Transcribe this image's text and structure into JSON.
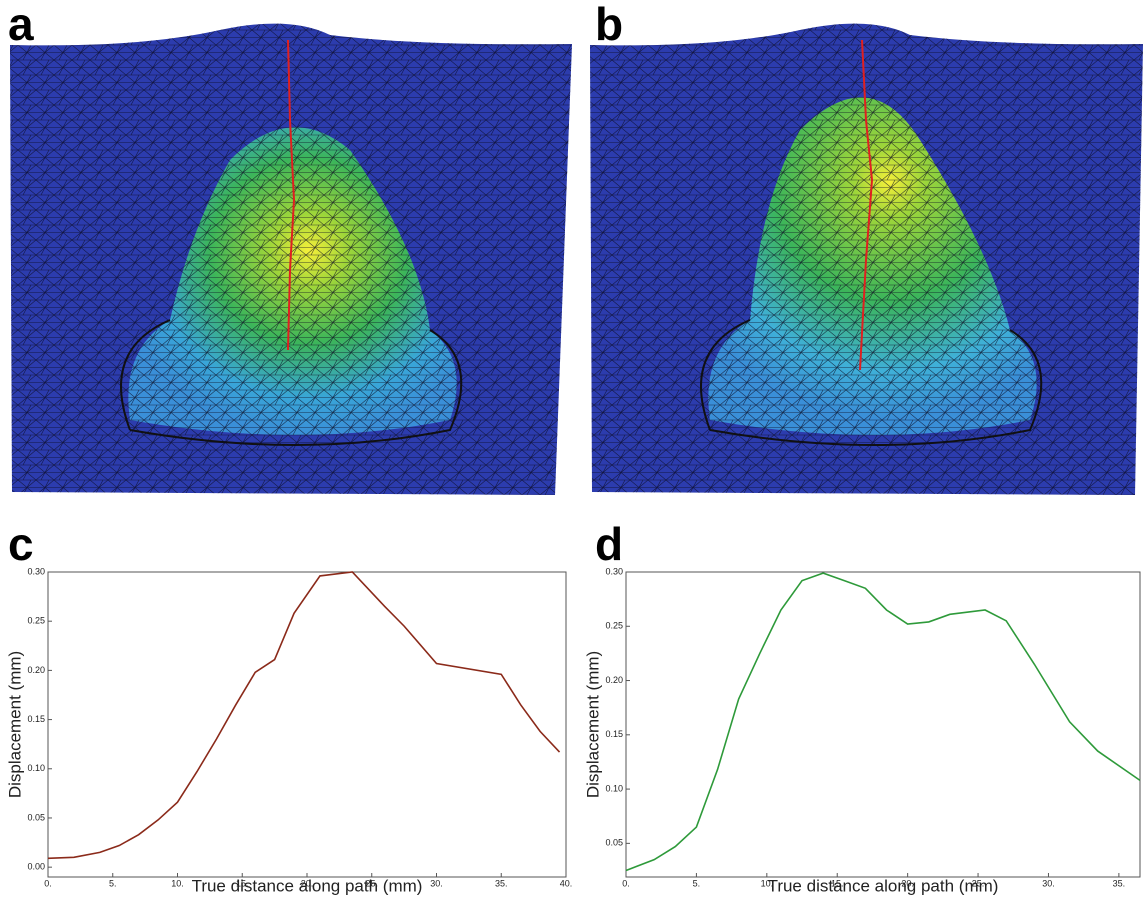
{
  "panel_labels": [
    "a",
    "b",
    "c",
    "d"
  ],
  "chart_data": [
    {
      "type": "line",
      "x_label": "True distance along path (mm)",
      "y_label": "Displacement (mm)",
      "color": "#8b2a1a",
      "x": [
        0,
        2,
        4,
        5.5,
        7,
        8.5,
        10,
        11.5,
        13,
        14.5,
        16,
        17.5,
        19,
        21,
        23.5,
        26,
        27.5,
        30,
        35,
        36.5,
        38,
        39.5
      ],
      "values": [
        0.009,
        0.01,
        0.015,
        0.022,
        0.033,
        0.048,
        0.066,
        0.097,
        0.13,
        0.165,
        0.198,
        0.211,
        0.258,
        0.296,
        0.3,
        0.265,
        0.245,
        0.207,
        0.196,
        0.165,
        0.138,
        0.117
      ],
      "xlim": [
        0,
        40
      ],
      "ylim": [
        -0.01,
        0.3
      ],
      "xticks": [
        {
          "value": 0,
          "label": "0."
        },
        {
          "value": 5,
          "label": "5."
        },
        {
          "value": 10,
          "label": "10."
        },
        {
          "value": 15,
          "label": "15."
        },
        {
          "value": 20,
          "label": "20."
        },
        {
          "value": 25,
          "label": "25."
        },
        {
          "value": 30,
          "label": "30."
        },
        {
          "value": 35,
          "label": "35."
        },
        {
          "value": 40,
          "label": "40."
        }
      ],
      "yticks": [
        {
          "value": 0,
          "label": "0.00"
        },
        0.05,
        {
          "value": 0.1,
          "label": "0.10"
        },
        0.15,
        {
          "value": 0.2,
          "label": "0.20"
        },
        0.25,
        {
          "value": 0.3,
          "label": "0.30"
        }
      ]
    },
    {
      "type": "line",
      "x_label": "True distance along path (mm)",
      "y_label": "Displacement (mm)",
      "color": "#2e9a3a",
      "x": [
        0,
        2,
        3.5,
        5,
        6.5,
        8,
        9.5,
        11,
        12.5,
        14,
        15.5,
        17,
        18.5,
        20,
        21.5,
        23,
        25.5,
        27,
        29,
        31.5,
        33.5,
        36.5
      ],
      "values": [
        0.025,
        0.035,
        0.047,
        0.065,
        0.118,
        0.183,
        0.225,
        0.265,
        0.292,
        0.299,
        0.292,
        0.285,
        0.265,
        0.252,
        0.254,
        0.261,
        0.265,
        0.255,
        0.215,
        0.162,
        0.135,
        0.108
      ],
      "xlim": [
        0,
        36.5
      ],
      "ylim": [
        0.019,
        0.3
      ],
      "xticks": [
        {
          "value": 0,
          "label": "0."
        },
        {
          "value": 5,
          "label": "5."
        },
        {
          "value": 10,
          "label": "10."
        },
        {
          "value": 15,
          "label": "15."
        },
        {
          "value": 20,
          "label": "20."
        },
        {
          "value": 25,
          "label": "25."
        },
        {
          "value": 30,
          "label": "30."
        },
        {
          "value": 35,
          "label": "35."
        }
      ],
      "yticks": [
        0.05,
        {
          "value": 0.1,
          "label": "0.10"
        },
        0.15,
        {
          "value": 0.2,
          "label": "0.20"
        },
        0.25,
        {
          "value": 0.3,
          "label": "0.30"
        }
      ]
    }
  ]
}
